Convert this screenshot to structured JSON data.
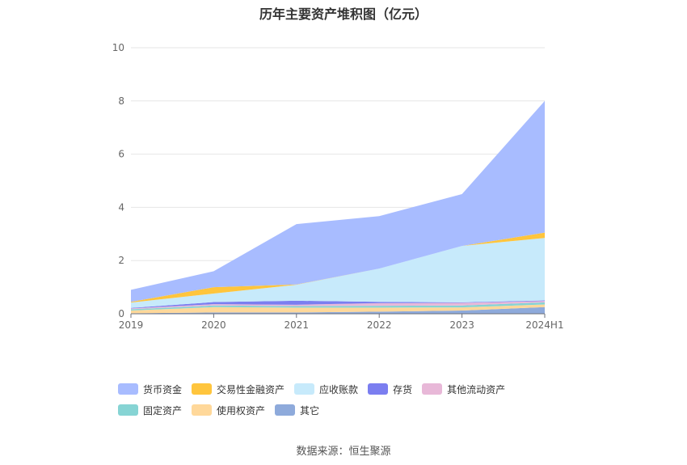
{
  "title": "历年主要资产堆积图（亿元）",
  "source": "数据来源：恒生聚源",
  "chart_data": {
    "type": "area",
    "stacked": true,
    "title": "历年主要资产堆积图（亿元）",
    "categories": [
      "2019",
      "2020",
      "2021",
      "2022",
      "2023",
      "2024H1"
    ],
    "ylim": [
      0,
      10
    ],
    "yticks": [
      0,
      2,
      4,
      6,
      8,
      10
    ],
    "grid": true,
    "legend_position": "bottom",
    "series": [
      {
        "name": "其它",
        "color": "#8eaadb",
        "values": [
          0.02,
          0.05,
          0.05,
          0.08,
          0.12,
          0.25
        ]
      },
      {
        "name": "使用权资产",
        "color": "#ffd89a",
        "values": [
          0.1,
          0.2,
          0.18,
          0.15,
          0.12,
          0.1
        ]
      },
      {
        "name": "固定资产",
        "color": "#86d4d4",
        "values": [
          0.05,
          0.06,
          0.06,
          0.07,
          0.07,
          0.08
        ]
      },
      {
        "name": "其他流动资产",
        "color": "#e8b8d8",
        "values": [
          0.03,
          0.05,
          0.05,
          0.1,
          0.1,
          0.05
        ]
      },
      {
        "name": "存货",
        "color": "#7b7ef0",
        "values": [
          0.02,
          0.08,
          0.15,
          0.05,
          0.02,
          0.02
        ]
      },
      {
        "name": "应收账款",
        "color": "#c7eafb",
        "values": [
          0.2,
          0.32,
          0.6,
          1.25,
          2.12,
          2.35
        ]
      },
      {
        "name": "交易性金融资产",
        "color": "#ffc53d",
        "values": [
          0.03,
          0.24,
          0.01,
          0.0,
          0.0,
          0.2
        ]
      },
      {
        "name": "货币资金",
        "color": "#a8bcff",
        "values": [
          0.45,
          0.6,
          2.27,
          1.97,
          1.95,
          4.95
        ]
      }
    ]
  },
  "legend_order": [
    7,
    6,
    5,
    4,
    3,
    2,
    1,
    0
  ]
}
